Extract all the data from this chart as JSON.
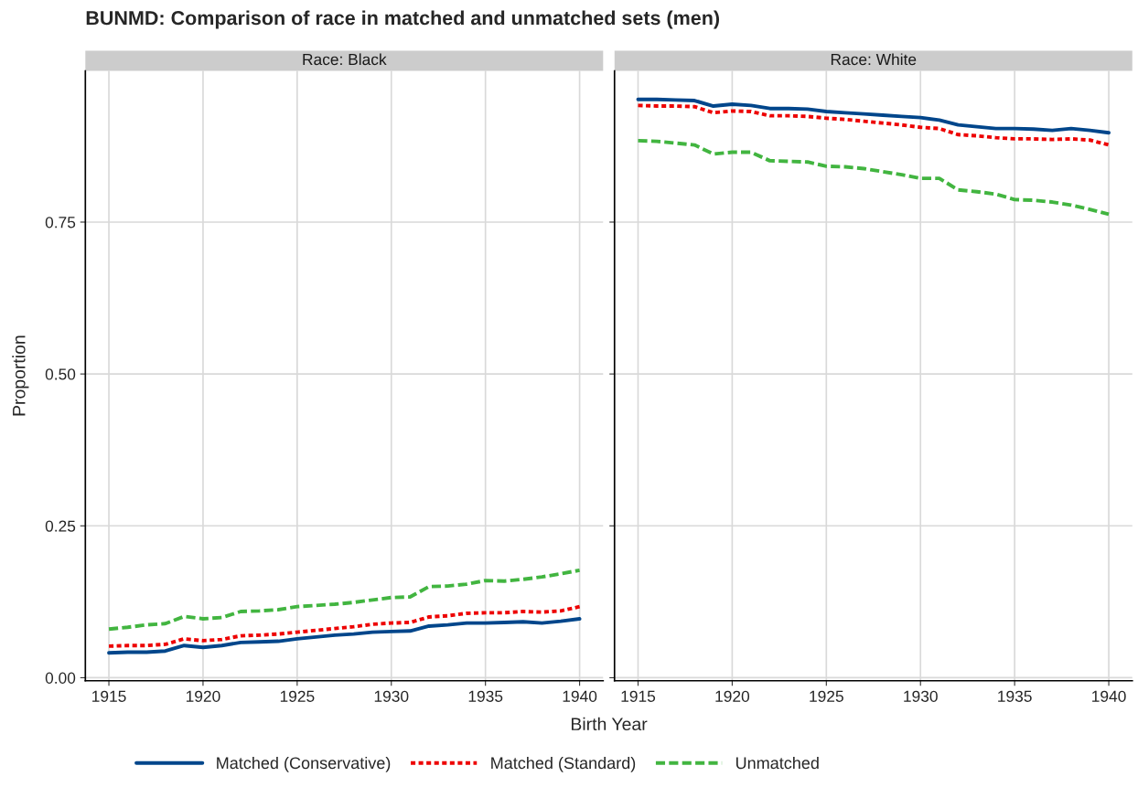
{
  "chart_data": [
    {
      "type": "line",
      "title": "BUNMD: Comparison of race in matched and unmatched sets (men)",
      "subtitle": "Race: Black",
      "xlabel": "Birth Year",
      "ylabel": "Proportion",
      "x": [
        1915,
        1916,
        1917,
        1918,
        1919,
        1920,
        1921,
        1922,
        1923,
        1924,
        1925,
        1926,
        1927,
        1928,
        1929,
        1930,
        1931,
        1932,
        1933,
        1934,
        1935,
        1936,
        1937,
        1938,
        1939,
        1940
      ],
      "series": [
        {
          "name": "Matched (Conservative)",
          "color": "#00468b",
          "line_style": "solid",
          "values": [
            0.041,
            0.042,
            0.042,
            0.044,
            0.053,
            0.05,
            0.053,
            0.058,
            0.059,
            0.06,
            0.064,
            0.067,
            0.07,
            0.072,
            0.075,
            0.076,
            0.077,
            0.085,
            0.087,
            0.09,
            0.09,
            0.091,
            0.092,
            0.09,
            0.093,
            0.097
          ]
        },
        {
          "name": "Matched (Standard)",
          "color": "#ed0000",
          "line_style": "dotted",
          "values": [
            0.052,
            0.053,
            0.053,
            0.055,
            0.064,
            0.061,
            0.063,
            0.069,
            0.07,
            0.072,
            0.075,
            0.078,
            0.081,
            0.084,
            0.088,
            0.09,
            0.091,
            0.1,
            0.102,
            0.106,
            0.107,
            0.107,
            0.109,
            0.108,
            0.11,
            0.117
          ]
        },
        {
          "name": "Unmatched",
          "color": "#42b540",
          "line_style": "dashed",
          "values": [
            0.08,
            0.083,
            0.087,
            0.089,
            0.101,
            0.097,
            0.099,
            0.109,
            0.11,
            0.112,
            0.117,
            0.119,
            0.121,
            0.124,
            0.128,
            0.132,
            0.133,
            0.15,
            0.151,
            0.154,
            0.16,
            0.159,
            0.162,
            0.166,
            0.171,
            0.177
          ]
        }
      ],
      "xlim": [
        1913.75,
        1941.25
      ],
      "xticks": [
        1915,
        1920,
        1925,
        1930,
        1935,
        1940
      ],
      "ylim": [
        -0.005,
        0.999
      ],
      "yticks": [
        {
          "value": 0,
          "label": "0.00"
        },
        0.25,
        {
          "value": 0.5,
          "label": "0.50"
        },
        0.75
      ],
      "grid": true,
      "legend": "bottom"
    },
    {
      "type": "line",
      "subtitle": "Race: White",
      "x": [
        1915,
        1916,
        1917,
        1918,
        1919,
        1920,
        1921,
        1922,
        1923,
        1924,
        1925,
        1926,
        1927,
        1928,
        1929,
        1930,
        1931,
        1932,
        1933,
        1934,
        1935,
        1936,
        1937,
        1938,
        1939,
        1940
      ],
      "series": [
        {
          "name": "Matched (Conservative)",
          "color": "#00468b",
          "line_style": "solid",
          "values": [
            0.952,
            0.952,
            0.951,
            0.95,
            0.941,
            0.944,
            0.942,
            0.937,
            0.937,
            0.936,
            0.932,
            0.93,
            0.928,
            0.926,
            0.924,
            0.922,
            0.918,
            0.91,
            0.907,
            0.904,
            0.904,
            0.903,
            0.901,
            0.904,
            0.901,
            0.897
          ]
        },
        {
          "name": "Matched (Standard)",
          "color": "#ed0000",
          "line_style": "dotted",
          "values": [
            0.942,
            0.941,
            0.941,
            0.94,
            0.93,
            0.933,
            0.932,
            0.925,
            0.925,
            0.924,
            0.921,
            0.919,
            0.916,
            0.913,
            0.91,
            0.906,
            0.904,
            0.894,
            0.892,
            0.889,
            0.887,
            0.887,
            0.886,
            0.887,
            0.885,
            0.877
          ]
        },
        {
          "name": "Unmatched",
          "color": "#42b540",
          "line_style": "dashed",
          "values": [
            0.884,
            0.883,
            0.88,
            0.877,
            0.862,
            0.865,
            0.865,
            0.851,
            0.85,
            0.849,
            0.842,
            0.841,
            0.838,
            0.833,
            0.828,
            0.822,
            0.822,
            0.803,
            0.8,
            0.796,
            0.787,
            0.786,
            0.783,
            0.778,
            0.771,
            0.763
          ]
        }
      ],
      "xlim": [
        1913.75,
        1941.25
      ],
      "xticks": [
        1915,
        1920,
        1925,
        1930,
        1935,
        1940
      ],
      "ylim": [
        -0.005,
        0.999
      ],
      "yticks": [
        {
          "value": 0,
          "label": null
        },
        {
          "value": 0.25,
          "label": null
        },
        {
          "value": 0.5,
          "label": null
        },
        {
          "value": 0.75,
          "label": null
        }
      ],
      "grid": true,
      "tick_labels": "x"
    }
  ]
}
